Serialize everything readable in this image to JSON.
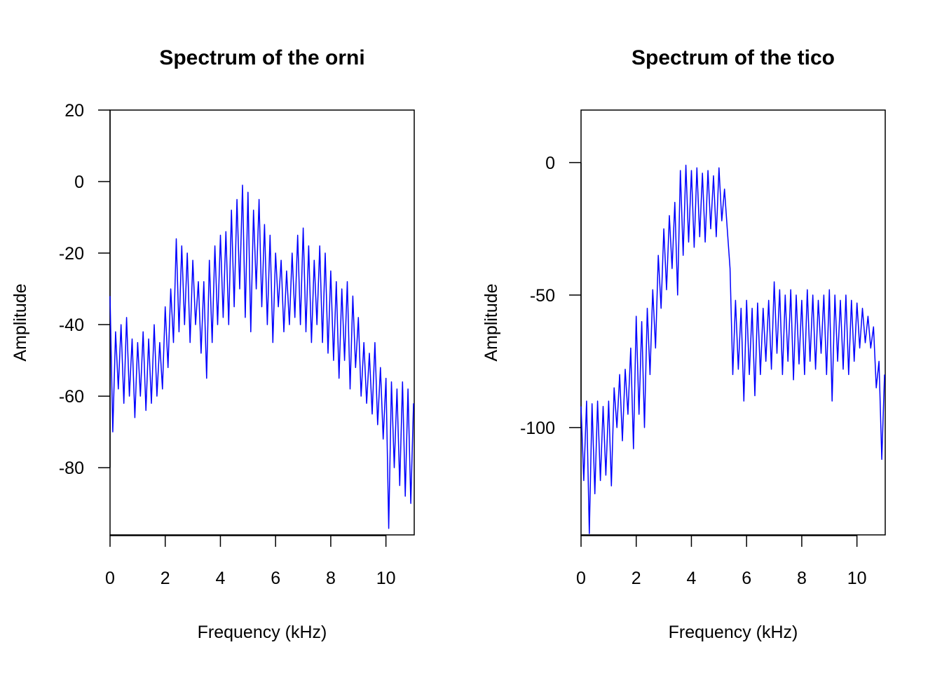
{
  "chart_data": [
    {
      "type": "line",
      "title": "Spectrum of the orni",
      "x_label": "Frequency (kHz)",
      "y_label": "Amplitude",
      "xlim": [
        0,
        11.025
      ],
      "ylim": [
        -98.8,
        20
      ],
      "xticks": [
        0,
        2,
        4,
        6,
        8,
        10
      ],
      "yticks": [
        -80,
        -60,
        -40,
        -20,
        0,
        20
      ],
      "series": [
        {
          "color": "#0000ff",
          "x": [
            0,
            0.1,
            0.2,
            0.3,
            0.4,
            0.5,
            0.6,
            0.7,
            0.8,
            0.9,
            1,
            1.1,
            1.2,
            1.3,
            1.4,
            1.5,
            1.6,
            1.7,
            1.8,
            1.9,
            2,
            2.1,
            2.2,
            2.3,
            2.4,
            2.5,
            2.6,
            2.7,
            2.8,
            2.9,
            3,
            3.1,
            3.2,
            3.3,
            3.4,
            3.5,
            3.6,
            3.7,
            3.8,
            3.9,
            4,
            4.1,
            4.2,
            4.3,
            4.4,
            4.5,
            4.6,
            4.7,
            4.8,
            4.9,
            5,
            5.1,
            5.2,
            5.3,
            5.4,
            5.5,
            5.6,
            5.7,
            5.8,
            5.9,
            6,
            6.1,
            6.2,
            6.3,
            6.4,
            6.5,
            6.6,
            6.7,
            6.8,
            6.9,
            7,
            7.1,
            7.2,
            7.3,
            7.4,
            7.5,
            7.6,
            7.7,
            7.8,
            7.9,
            8,
            8.1,
            8.2,
            8.3,
            8.4,
            8.5,
            8.6,
            8.7,
            8.8,
            8.9,
            9,
            9.1,
            9.2,
            9.3,
            9.4,
            9.5,
            9.6,
            9.7,
            9.8,
            9.9,
            10,
            10.1,
            10.2,
            10.3,
            10.4,
            10.5,
            10.6,
            10.7,
            10.8,
            10.9,
            11
          ],
          "values": [
            -32,
            -70,
            -42,
            -58,
            -40,
            -62,
            -38,
            -60,
            -44,
            -66,
            -45,
            -60,
            -42,
            -64,
            -44,
            -62,
            -40,
            -60,
            -45,
            -58,
            -35,
            -52,
            -30,
            -45,
            -16,
            -42,
            -18,
            -40,
            -20,
            -45,
            -22,
            -40,
            -28,
            -48,
            -28,
            -55,
            -22,
            -45,
            -18,
            -40,
            -15,
            -38,
            -14,
            -40,
            -8,
            -35,
            -5,
            -30,
            -1,
            -38,
            -3,
            -42,
            -8,
            -30,
            -5,
            -35,
            -12,
            -40,
            -15,
            -45,
            -20,
            -35,
            -22,
            -42,
            -25,
            -40,
            -20,
            -38,
            -15,
            -40,
            -13,
            -42,
            -18,
            -45,
            -22,
            -40,
            -18,
            -45,
            -20,
            -48,
            -25,
            -50,
            -28,
            -55,
            -30,
            -50,
            -28,
            -58,
            -32,
            -52,
            -38,
            -60,
            -45,
            -62,
            -48,
            -65,
            -45,
            -68,
            -52,
            -72,
            -55,
            -97,
            -56,
            -80,
            -58,
            -85,
            -56,
            -88,
            -58,
            -90,
            -62
          ]
        }
      ]
    },
    {
      "type": "line",
      "title": "Spectrum of the tico",
      "x_label": "Frequency (kHz)",
      "y_label": "Amplitude",
      "xlim": [
        0,
        11.025
      ],
      "ylim": [
        -140.5,
        19.8
      ],
      "xticks": [
        0,
        2,
        4,
        6,
        8,
        10
      ],
      "yticks": [
        -100,
        -50,
        0
      ],
      "series": [
        {
          "color": "#0000ff",
          "x": [
            0,
            0.1,
            0.2,
            0.3,
            0.4,
            0.5,
            0.6,
            0.7,
            0.8,
            0.9,
            1,
            1.1,
            1.2,
            1.3,
            1.4,
            1.5,
            1.6,
            1.7,
            1.8,
            1.9,
            2,
            2.1,
            2.2,
            2.3,
            2.4,
            2.5,
            2.6,
            2.7,
            2.8,
            2.9,
            3,
            3.1,
            3.2,
            3.3,
            3.4,
            3.5,
            3.6,
            3.7,
            3.8,
            3.9,
            4,
            4.1,
            4.2,
            4.3,
            4.4,
            4.5,
            4.6,
            4.7,
            4.8,
            4.9,
            5,
            5.1,
            5.2,
            5.3,
            5.4,
            5.5,
            5.6,
            5.7,
            5.8,
            5.9,
            6,
            6.1,
            6.2,
            6.3,
            6.4,
            6.5,
            6.6,
            6.7,
            6.8,
            6.9,
            7,
            7.1,
            7.2,
            7.3,
            7.4,
            7.5,
            7.6,
            7.7,
            7.8,
            7.9,
            8,
            8.1,
            8.2,
            8.3,
            8.4,
            8.5,
            8.6,
            8.7,
            8.8,
            8.9,
            9,
            9.1,
            9.2,
            9.3,
            9.4,
            9.5,
            9.6,
            9.7,
            9.8,
            9.9,
            10,
            10.1,
            10.2,
            10.3,
            10.4,
            10.5,
            10.6,
            10.7,
            10.8,
            10.9,
            11
          ],
          "values": [
            -92,
            -120,
            -90,
            -140,
            -91,
            -125,
            -90,
            -120,
            -92,
            -118,
            -90,
            -122,
            -85,
            -100,
            -80,
            -105,
            -78,
            -95,
            -70,
            -108,
            -58,
            -95,
            -60,
            -100,
            -55,
            -80,
            -48,
            -70,
            -35,
            -55,
            -25,
            -48,
            -20,
            -40,
            -15,
            -50,
            -3,
            -35,
            -1,
            -30,
            -3,
            -32,
            -2,
            -28,
            -4,
            -30,
            -3,
            -25,
            -5,
            -28,
            -2,
            -22,
            -10,
            -25,
            -40,
            -80,
            -52,
            -78,
            -55,
            -90,
            -52,
            -80,
            -55,
            -88,
            -53,
            -80,
            -55,
            -75,
            -52,
            -78,
            -45,
            -72,
            -48,
            -80,
            -50,
            -75,
            -48,
            -82,
            -50,
            -76,
            -52,
            -80,
            -48,
            -75,
            -50,
            -78,
            -52,
            -72,
            -50,
            -80,
            -48,
            -90,
            -50,
            -75,
            -52,
            -78,
            -50,
            -80,
            -52,
            -75,
            -53,
            -70,
            -55,
            -68,
            -58,
            -70,
            -62,
            -85,
            -75,
            -112,
            -80
          ]
        }
      ]
    }
  ]
}
